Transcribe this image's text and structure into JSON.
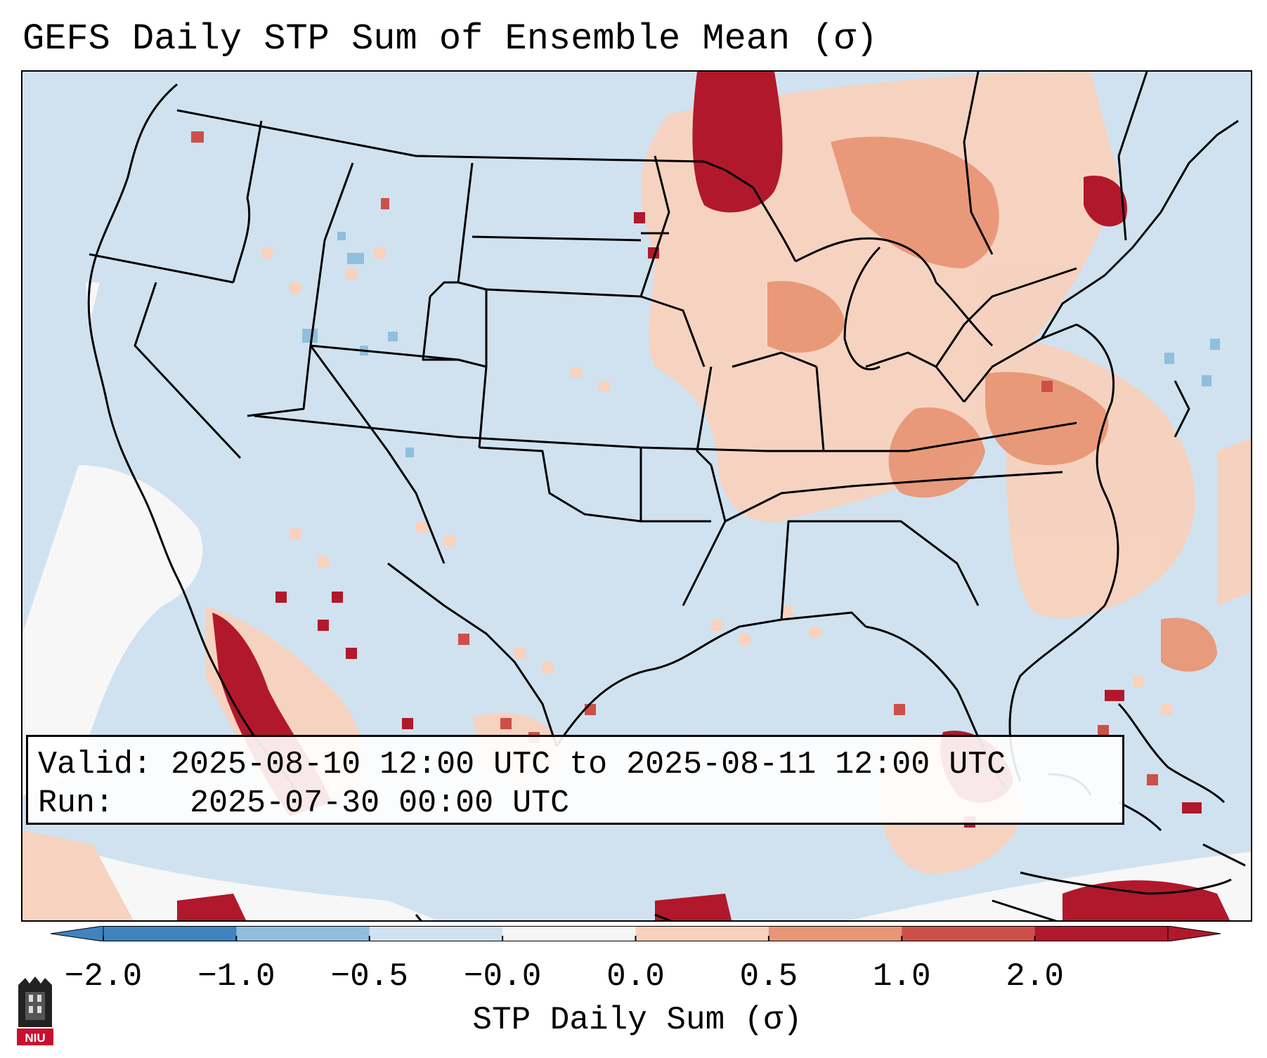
{
  "title": "GEFS Daily STP Sum of Ensemble Mean (σ)",
  "info": {
    "valid_label": "Valid:",
    "valid_value": "2025-08-10 12:00 UTC to 2025-08-11 12:00 UTC",
    "run_label": "Run:",
    "run_value": "2025-07-30 00:00 UTC"
  },
  "colorbar": {
    "label": "STP Daily Sum (σ)",
    "ticks": [
      "−2.0",
      "−1.0",
      "−0.5",
      "−0.0",
      "0.0",
      "0.5",
      "1.0",
      "2.0"
    ],
    "colors": [
      "#3f83bf",
      "#8fbfdc",
      "#d0e2ef",
      "#f5f5f5",
      "#f8d2bd",
      "#e89675",
      "#cd5048",
      "#b2182b"
    ]
  },
  "legend_colors": {
    "background": "#d0e2ef",
    "light_red": "#f8d2bd",
    "medium_red": "#e89675",
    "red": "#cd5048",
    "dark_red": "#b2182b",
    "white": "#f7f7f7",
    "light_blue": "#8fbfdc"
  },
  "logo": {
    "text": "NIU"
  }
}
